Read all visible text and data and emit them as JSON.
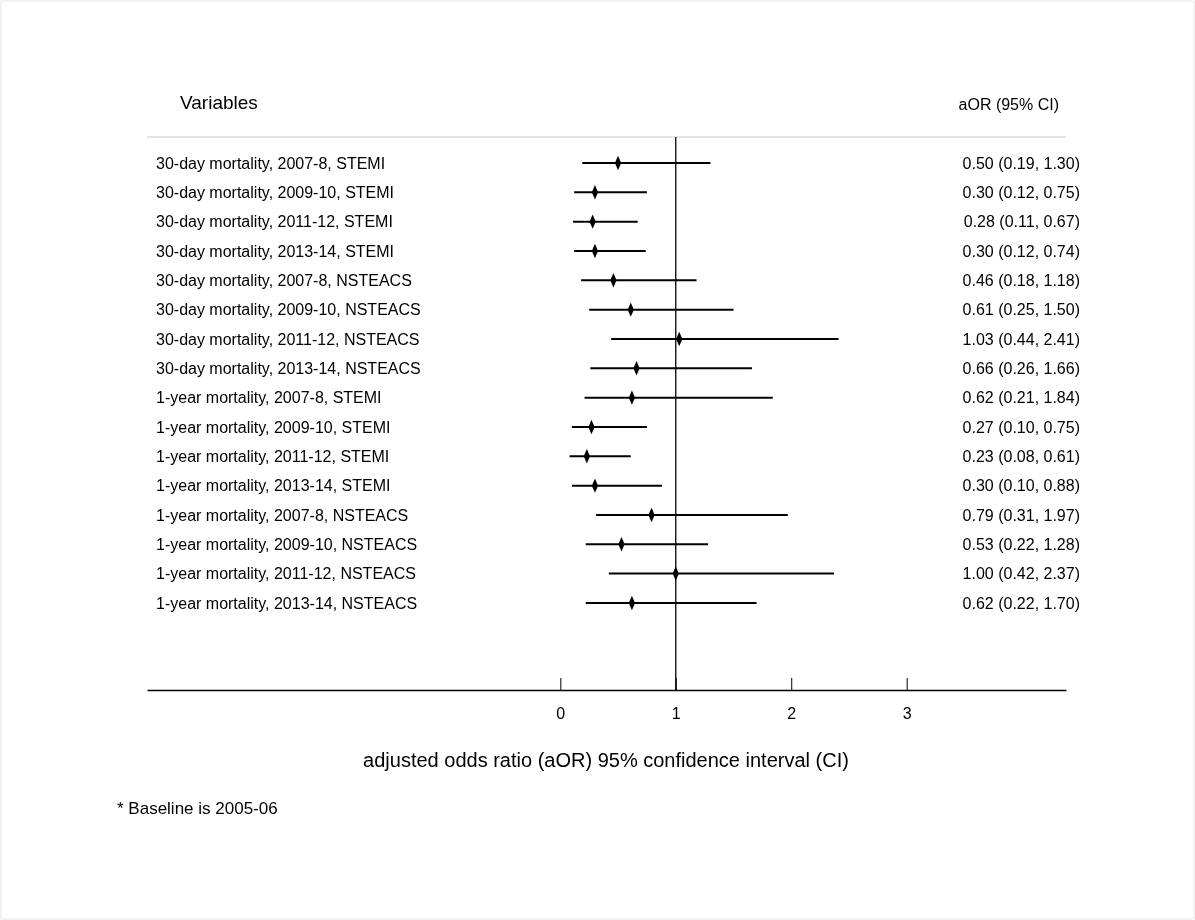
{
  "chart_data": [
    {
      "type": "scatter",
      "orientation": "horizontal",
      "marker": "diamond",
      "color": "#000000",
      "ylabel": "Variables",
      "xlabel": "adjusted odds ratio (aOR) 95% confidence interval (CI)",
      "categories": [
        "30-day mortality, 2007-8, STEMI",
        "30-day mortality, 2009-10, STEMI",
        "30-day mortality, 2011-12, STEMI",
        "30-day mortality, 2013-14, STEMI",
        "30-day mortality, 2007-8, NSTEACS",
        "30-day mortality, 2009-10, NSTEACS",
        "30-day mortality, 2011-12, NSTEACS",
        "30-day mortality, 2013-14, NSTEACS",
        "1-year mortality, 2007-8, STEMI",
        "1-year mortality, 2009-10, STEMI",
        "1-year mortality, 2011-12, STEMI",
        "1-year mortality, 2013-14, STEMI",
        "1-year mortality, 2007-8, NSTEACS",
        "1-year mortality, 2009-10, NSTEACS",
        "1-year mortality, 2011-12, NSTEACS",
        "1-year mortality, 2013-14, NSTEACS"
      ],
      "values": [
        0.5,
        0.3,
        0.28,
        0.3,
        0.46,
        0.61,
        1.03,
        0.66,
        0.62,
        0.27,
        0.23,
        0.3,
        0.79,
        0.53,
        1.0,
        0.62
      ],
      "errors": [
        [
          0.19,
          1.3
        ],
        [
          0.12,
          0.75
        ],
        [
          0.11,
          0.67
        ],
        [
          0.12,
          0.74
        ],
        [
          0.18,
          1.18
        ],
        [
          0.25,
          1.5
        ],
        [
          0.44,
          2.41
        ],
        [
          0.26,
          1.66
        ],
        [
          0.21,
          1.84
        ],
        [
          0.1,
          0.75
        ],
        [
          0.08,
          0.61
        ],
        [
          0.1,
          0.88
        ],
        [
          0.31,
          1.97
        ],
        [
          0.22,
          1.28
        ],
        [
          0.42,
          2.37
        ],
        [
          0.22,
          1.7
        ]
      ],
      "xlim": [
        -3.58,
        4.38
      ],
      "xticks": [
        0,
        1,
        2,
        3
      ],
      "ref_lines": [
        {
          "axis": "x",
          "value": 1
        }
      ],
      "annotations": [
        "* Baseline is 2005-06"
      ]
    },
    {
      "type": "other",
      "title": "aOR (95% CI)",
      "annotations": [
        "0.50 (0.19, 1.30)",
        "0.30 (0.12, 0.75)",
        "0.28 (0.11, 0.67)",
        "0.30 (0.12, 0.74)",
        "0.46 (0.18, 1.18)",
        "0.61 (0.25, 1.50)",
        "1.03 (0.44, 2.41)",
        "0.66 (0.26, 1.66)",
        "0.62 (0.21, 1.84)",
        "0.27 (0.10, 0.75)",
        "0.23 (0.08, 0.61)",
        "0.30 (0.10, 0.88)",
        "0.79 (0.31, 1.97)",
        "0.53 (0.22, 1.28)",
        "1.00 (0.42, 2.37)",
        "0.62 (0.22, 1.70)"
      ]
    }
  ]
}
